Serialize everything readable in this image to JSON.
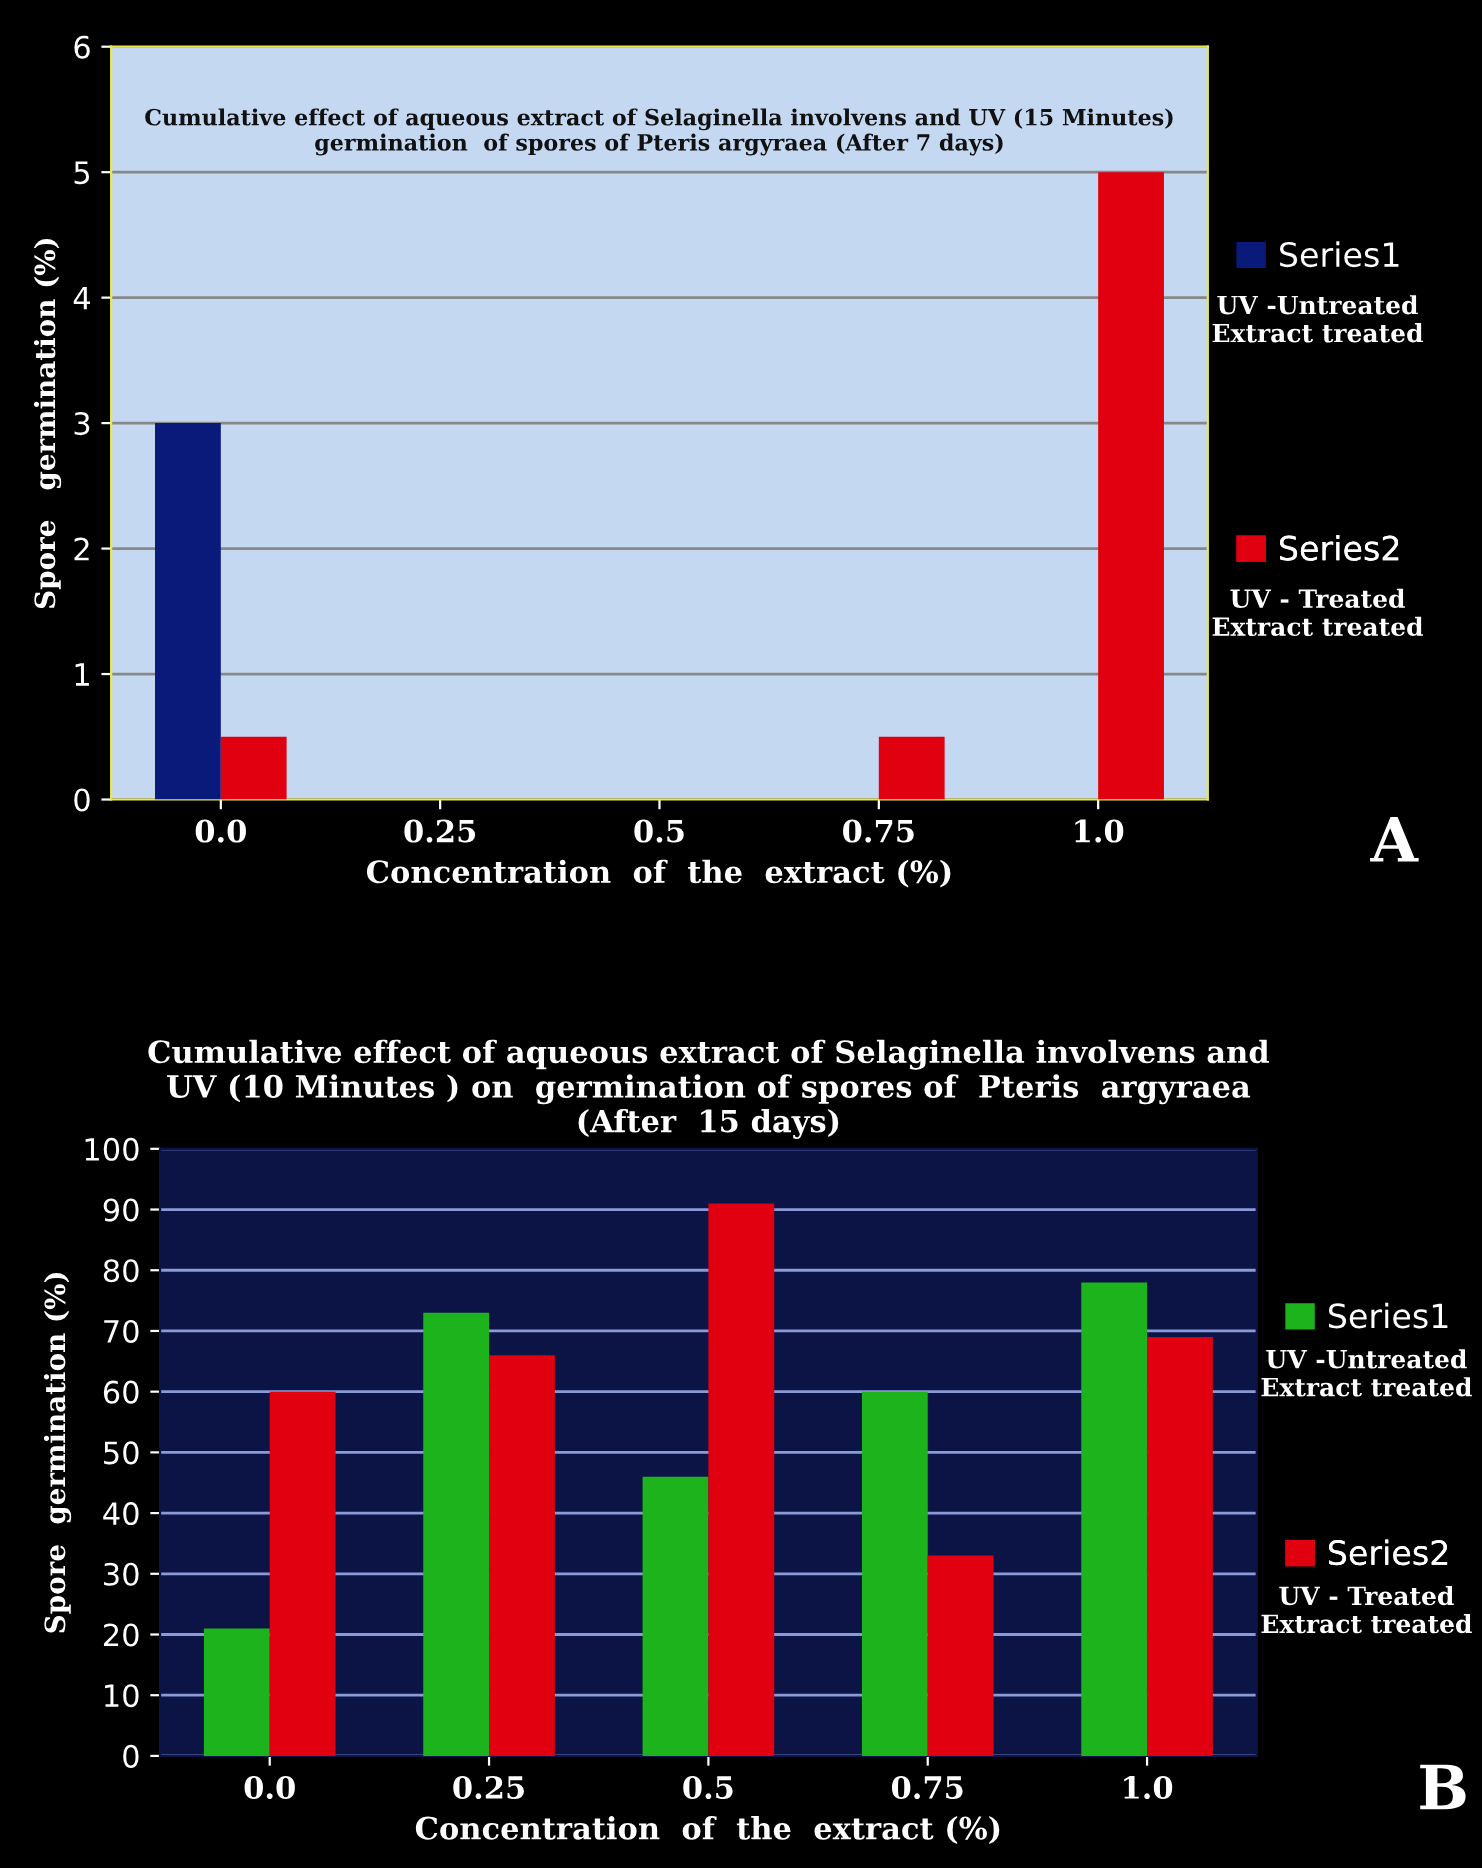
{
  "chart_data": [
    {
      "type": "bar",
      "title": "Cumulative effect of aqueous extract of Selaginella involvens and UV (15 Minutes)\ngermination  of spores of Pteris argyraea (After 7 days)",
      "xlabel": "Concentration  of  the  extract (%)",
      "ylabel": "Spore   germination (%)",
      "categories": [
        "0.0",
        "0.25",
        "0.5",
        "0.75",
        "1.0"
      ],
      "series": [
        {
          "name": "Series1",
          "color": "#0a1a7a",
          "values": [
            3,
            0,
            0,
            0,
            0
          ]
        },
        {
          "name": "Series2",
          "color": "#e0000f",
          "values": [
            0.5,
            0,
            0,
            0.5,
            5
          ]
        }
      ],
      "ylim": [
        0,
        6
      ],
      "yticks": [
        0,
        1,
        2,
        3,
        4,
        5,
        6
      ],
      "grid": "y",
      "legend": "right",
      "annotations": [
        "UV -Untreated\nExtract treated",
        "UV - Treated\nExtract treated",
        "A"
      ]
    },
    {
      "type": "bar",
      "title": "Cumulative effect of aqueous extract of Selaginella involvens and\nUV (10 Minutes ) on  germination of spores of  Pteris  argyraea\n(After  15 days)",
      "xlabel": "Concentration  of  the  extract (%)",
      "ylabel": "Spore  germination (%)",
      "categories": [
        "0.0",
        "0.25",
        "0.5",
        "0.75",
        "1.0"
      ],
      "series": [
        {
          "name": "Series1",
          "color": "#1db31d",
          "values": [
            21,
            73,
            46,
            60,
            78
          ]
        },
        {
          "name": "Series2",
          "color": "#e0000f",
          "values": [
            60,
            66,
            91,
            33,
            69
          ]
        }
      ],
      "ylim": [
        0,
        100
      ],
      "yticks": [
        0,
        10,
        20,
        30,
        40,
        50,
        60,
        70,
        80,
        90,
        100
      ],
      "grid": "y",
      "legend": "right",
      "annotations": [
        "UV -Untreated\nExtract treated",
        "UV - Treated\nExtract treated",
        "B"
      ]
    }
  ]
}
